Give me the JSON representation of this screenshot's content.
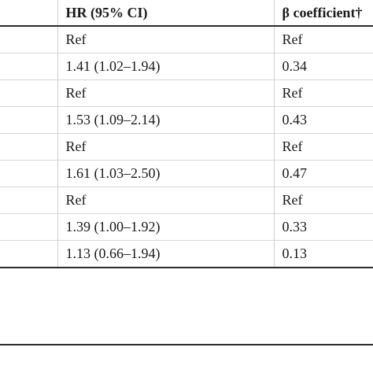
{
  "table": {
    "headers": [
      "",
      "HR (95% CI)",
      "β coefficient†"
    ],
    "rows": [
      [
        "",
        "Ref",
        "Ref"
      ],
      [
        "",
        "1.41 (1.02–1.94)",
        "0.34"
      ],
      [
        "",
        "Ref",
        "Ref"
      ],
      [
        "",
        "1.53 (1.09–2.14)",
        "0.43"
      ],
      [
        "",
        "Ref",
        "Ref"
      ],
      [
        "",
        "1.61 (1.03–2.50)",
        "0.47"
      ],
      [
        "",
        "Ref",
        "Ref"
      ],
      [
        "",
        "1.39 (1.00–1.92)",
        "0.33"
      ],
      [
        "",
        "1.13 (0.66–1.94)",
        "0.13"
      ]
    ]
  }
}
